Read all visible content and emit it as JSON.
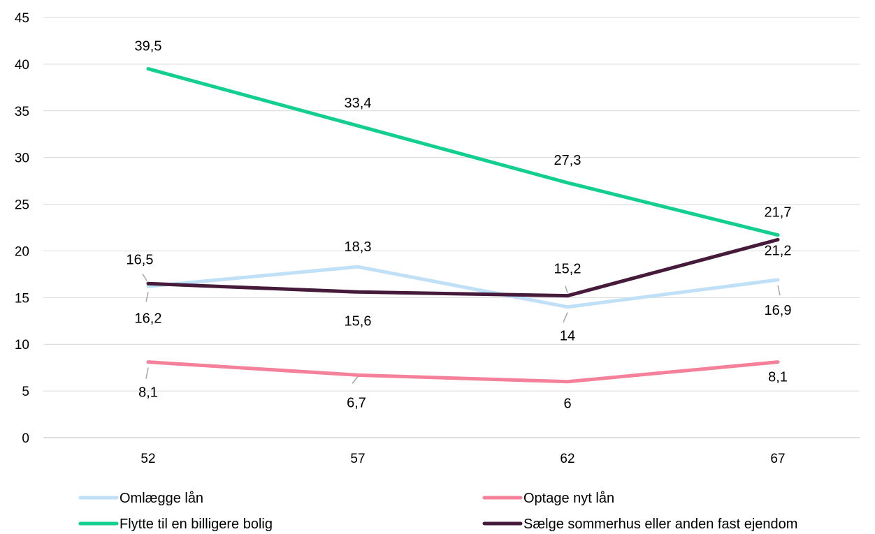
{
  "chart_data": {
    "type": "line",
    "x": [
      "52",
      "57",
      "62",
      "67"
    ],
    "ylim": [
      0,
      45
    ],
    "yticks": [
      0,
      5,
      10,
      15,
      20,
      25,
      30,
      35,
      40,
      45
    ],
    "grid": true,
    "legend_position": "bottom",
    "series": [
      {
        "name": "Omlægge lån",
        "values": [
          16.2,
          18.3,
          14,
          16.9
        ],
        "labels": [
          "16,2",
          "18,3",
          "14",
          "16,9"
        ],
        "color": "#bfe0f7"
      },
      {
        "name": "Optage nyt lån",
        "values": [
          8.1,
          6.7,
          6,
          8.1
        ],
        "labels": [
          "8,1",
          "6,7",
          "6",
          "8,1"
        ],
        "color": "#f5809a"
      },
      {
        "name": "Flytte til en billigere bolig",
        "values": [
          39.5,
          33.4,
          27.3,
          21.7
        ],
        "labels": [
          "39,5",
          "33,4",
          "27,3",
          "21,7"
        ],
        "color": "#12cf8f"
      },
      {
        "name": "Sælge sommerhus eller anden fast ejendom",
        "values": [
          16.5,
          15.6,
          15.2,
          21.2
        ],
        "labels": [
          "16,5",
          "15,6",
          "15,2",
          "21,2"
        ],
        "color": "#451a3a"
      }
    ]
  }
}
